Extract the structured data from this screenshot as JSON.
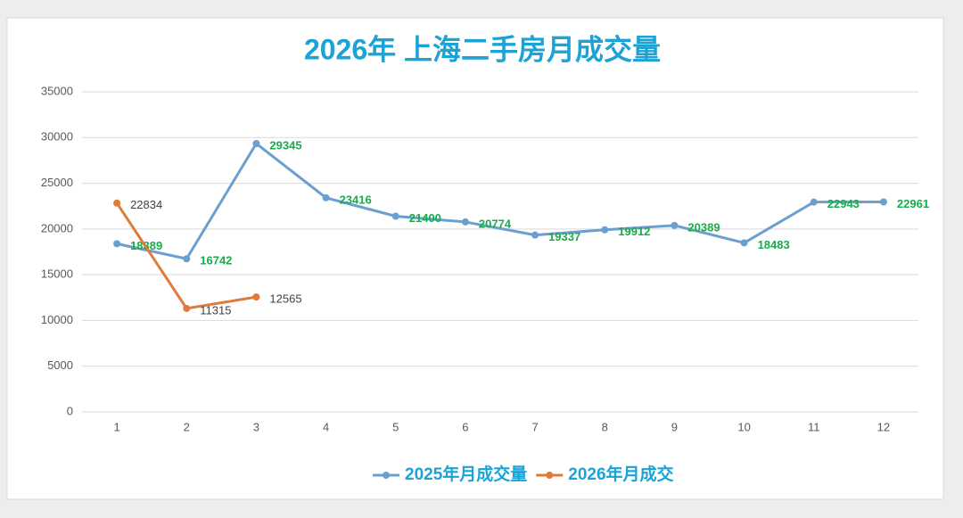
{
  "chart_data": {
    "type": "line",
    "title": "2026年 上海二手房月成交量",
    "categories": [
      "1",
      "2",
      "3",
      "4",
      "5",
      "6",
      "7",
      "8",
      "9",
      "10",
      "11",
      "12"
    ],
    "series": [
      {
        "name": "2025年月成交量",
        "color": "#6a9fcf",
        "label_color": "#1aab4b",
        "values": [
          18389,
          16742,
          29345,
          23416,
          21400,
          20774,
          19337,
          19912,
          20389,
          18483,
          22943,
          22961
        ]
      },
      {
        "name": "2026年月成交",
        "color": "#e07b39",
        "label_color": "#404040",
        "values": [
          22834,
          11315,
          12565,
          null,
          null,
          null,
          null,
          null,
          null,
          null,
          null,
          null
        ]
      }
    ],
    "ylim": [
      0,
      35000
    ],
    "yticks": [
      0,
      5000,
      10000,
      15000,
      20000,
      25000,
      30000,
      35000
    ],
    "grid": true,
    "legend": "bottom"
  }
}
